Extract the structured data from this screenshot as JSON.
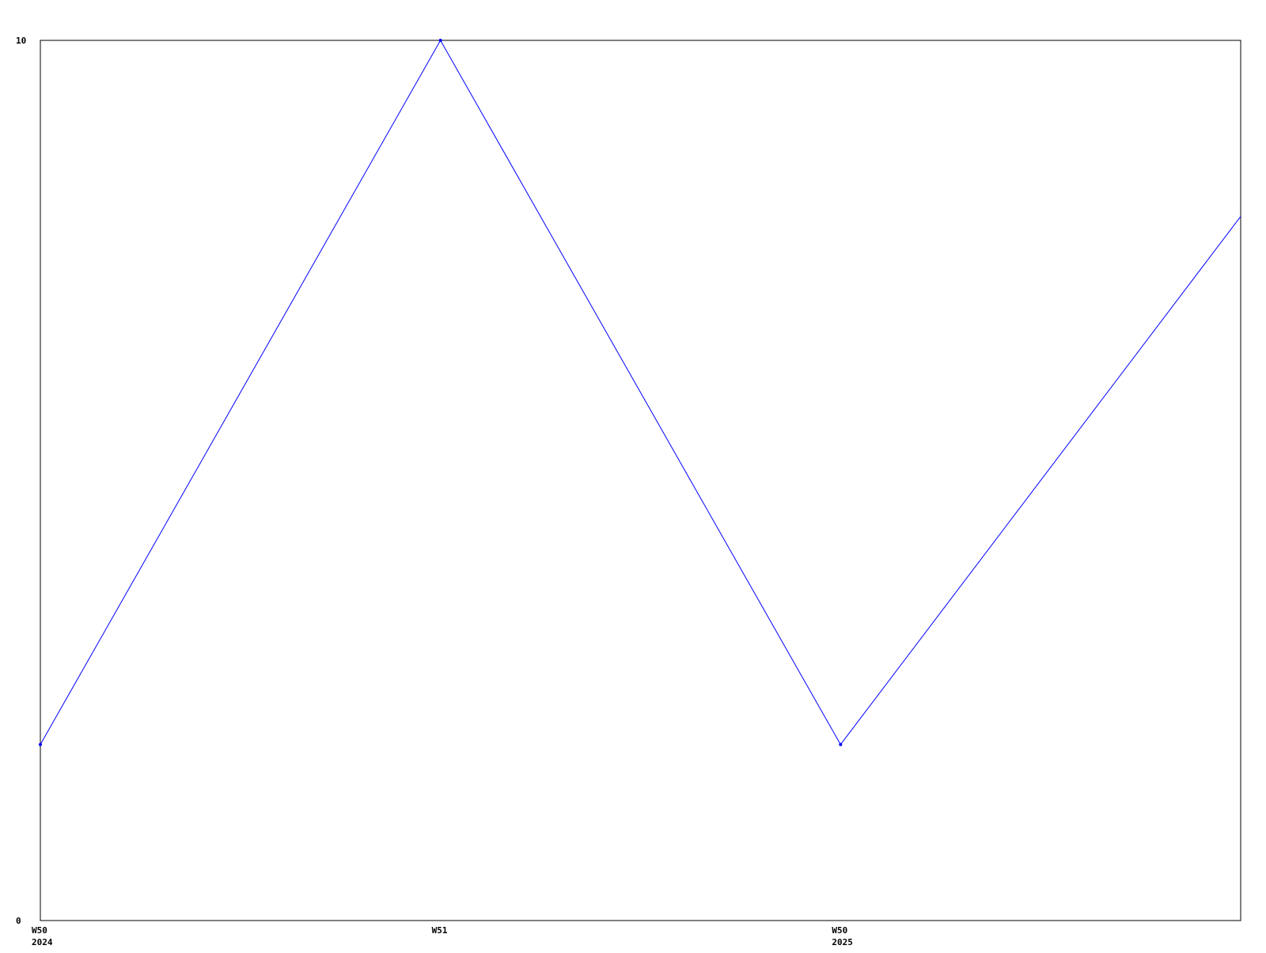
{
  "chart_data": {
    "type": "line",
    "title": "",
    "xlabel": "",
    "ylabel": "",
    "categories": [
      "W50 2024",
      "W51",
      "W50 2025",
      ""
    ],
    "x_tick_labels": [
      [
        "W50",
        "2024"
      ],
      [
        "W51"
      ],
      [
        "W50",
        "2025"
      ]
    ],
    "series": [
      {
        "values": [
          2,
          10,
          2,
          8
        ],
        "color": "#0000ff"
      }
    ],
    "ylim": [
      0,
      10
    ],
    "y_tick_labels": [
      "0",
      "10"
    ],
    "grid": false,
    "legend": "none",
    "axis_color": "#000000"
  }
}
